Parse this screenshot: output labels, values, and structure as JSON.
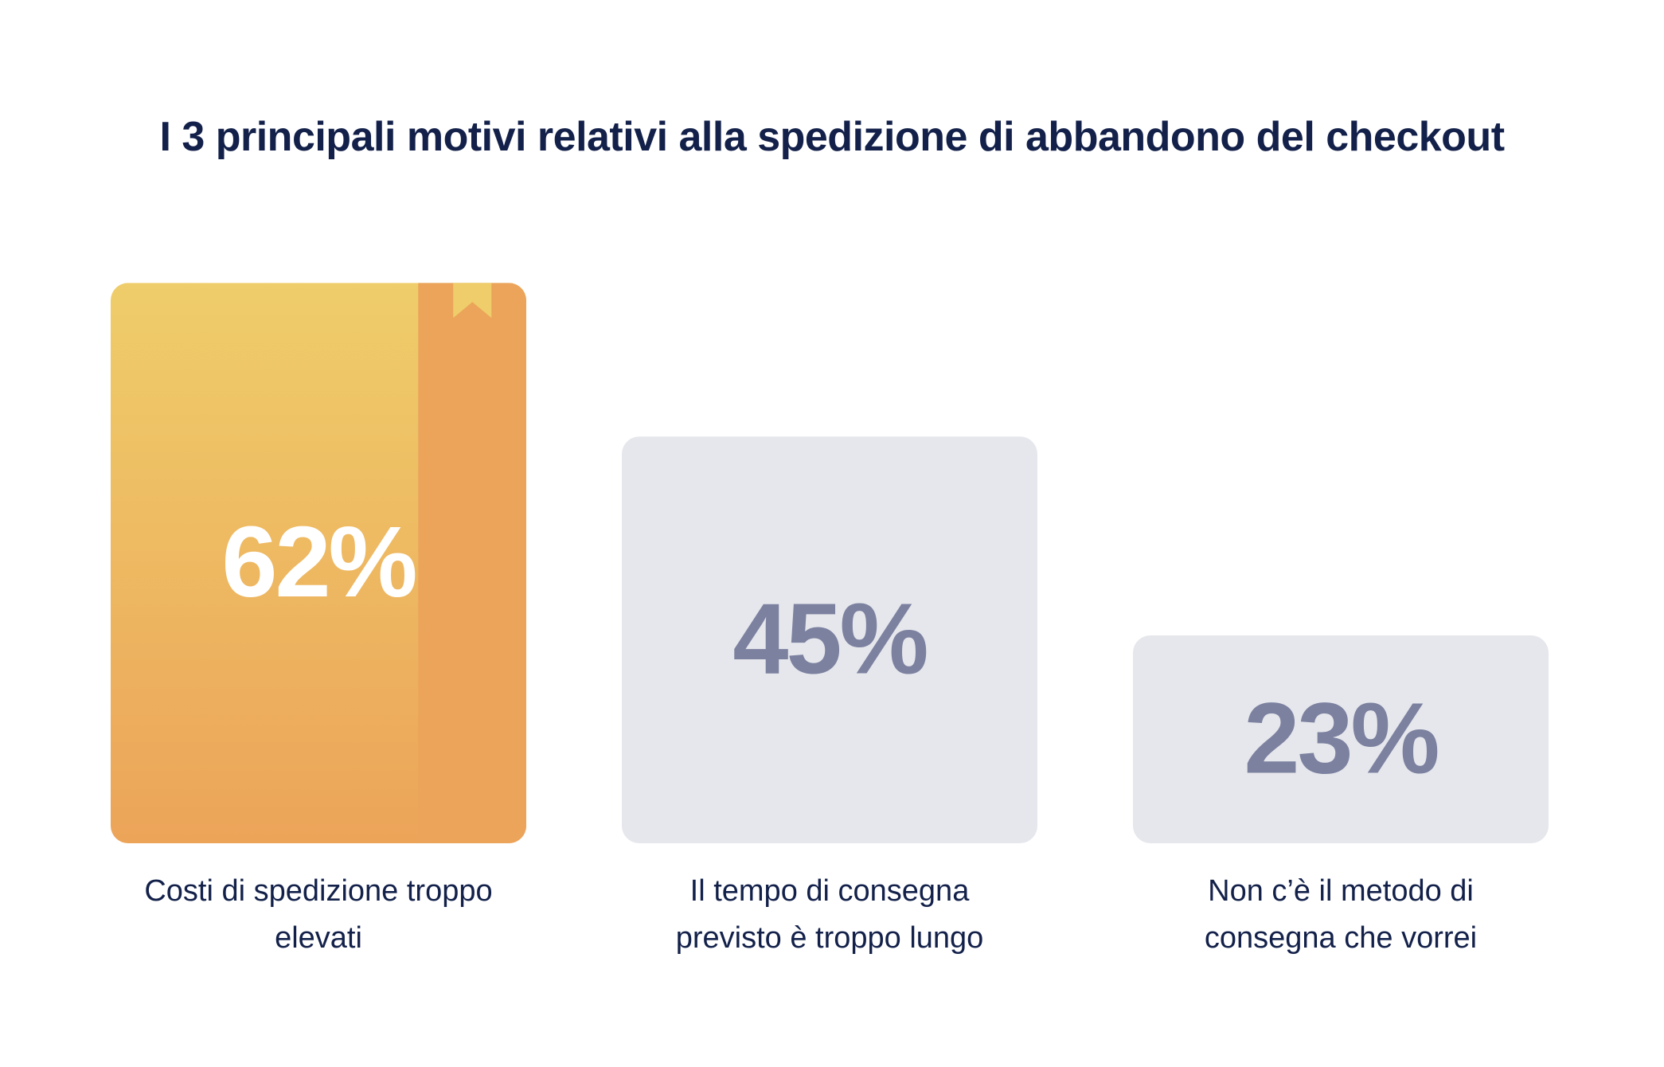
{
  "chart_data": {
    "type": "bar",
    "title": "I 3 principali motivi relativi alla spedizione di abbandono del checkout",
    "categories": [
      [
        "Costi di spedizione troppo",
        "elevati"
      ],
      [
        "Il tempo di consegna",
        "previsto è troppo lungo"
      ],
      [
        "Non c’è il metodo di",
        "consegna che vorrei"
      ]
    ],
    "values": [
      62,
      45,
      23
    ],
    "value_labels": [
      "62%",
      "45%",
      "23%"
    ],
    "unit": "%",
    "grid": false,
    "legend": "none",
    "highlight_index": 0
  },
  "colors": {
    "title": "#13214a",
    "label_text": "#13214a",
    "highlight_top": "#efcd6a",
    "highlight_bottom": "#eca459",
    "highlight_spine": "#eba45a",
    "highlight_ribbon": "#efcd6a",
    "highlight_value": "#ffffff",
    "muted_bar": "#e6e7ec",
    "muted_value": "#7c81a0"
  }
}
